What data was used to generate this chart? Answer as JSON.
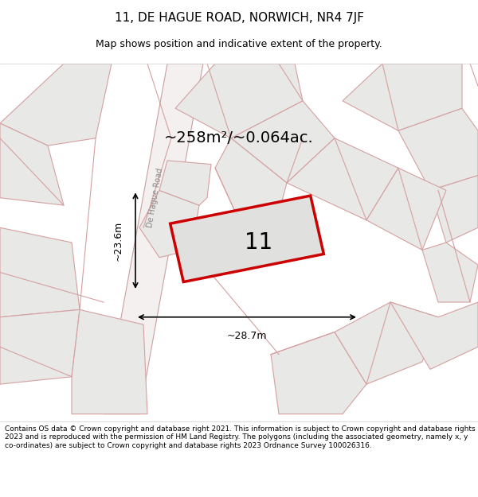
{
  "title": "11, DE HAGUE ROAD, NORWICH, NR4 7JF",
  "subtitle": "Map shows position and indicative extent of the property.",
  "area_text": "~258m²/~0.064ac.",
  "width_label": "~28.7m",
  "height_label": "~23.6m",
  "number_label": "11",
  "road_label": "De Hague Road",
  "footer": "Contains OS data © Crown copyright and database right 2021. This information is subject to Crown copyright and database rights 2023 and is reproduced with the permission of HM Land Registry. The polygons (including the associated geometry, namely x, y co-ordinates) are subject to Crown copyright and database rights 2023 Ordnance Survey 100026316.",
  "bg_color": "#f5f4f2",
  "map_bg": "#f0eeec",
  "plot_color": "#e8e8e8",
  "plot_outline": "#c8c8c8",
  "red_outline": "#cc0000",
  "road_color": "#f5c8c8",
  "title_fontsize": 11,
  "subtitle_fontsize": 9,
  "footer_fontsize": 6.5
}
